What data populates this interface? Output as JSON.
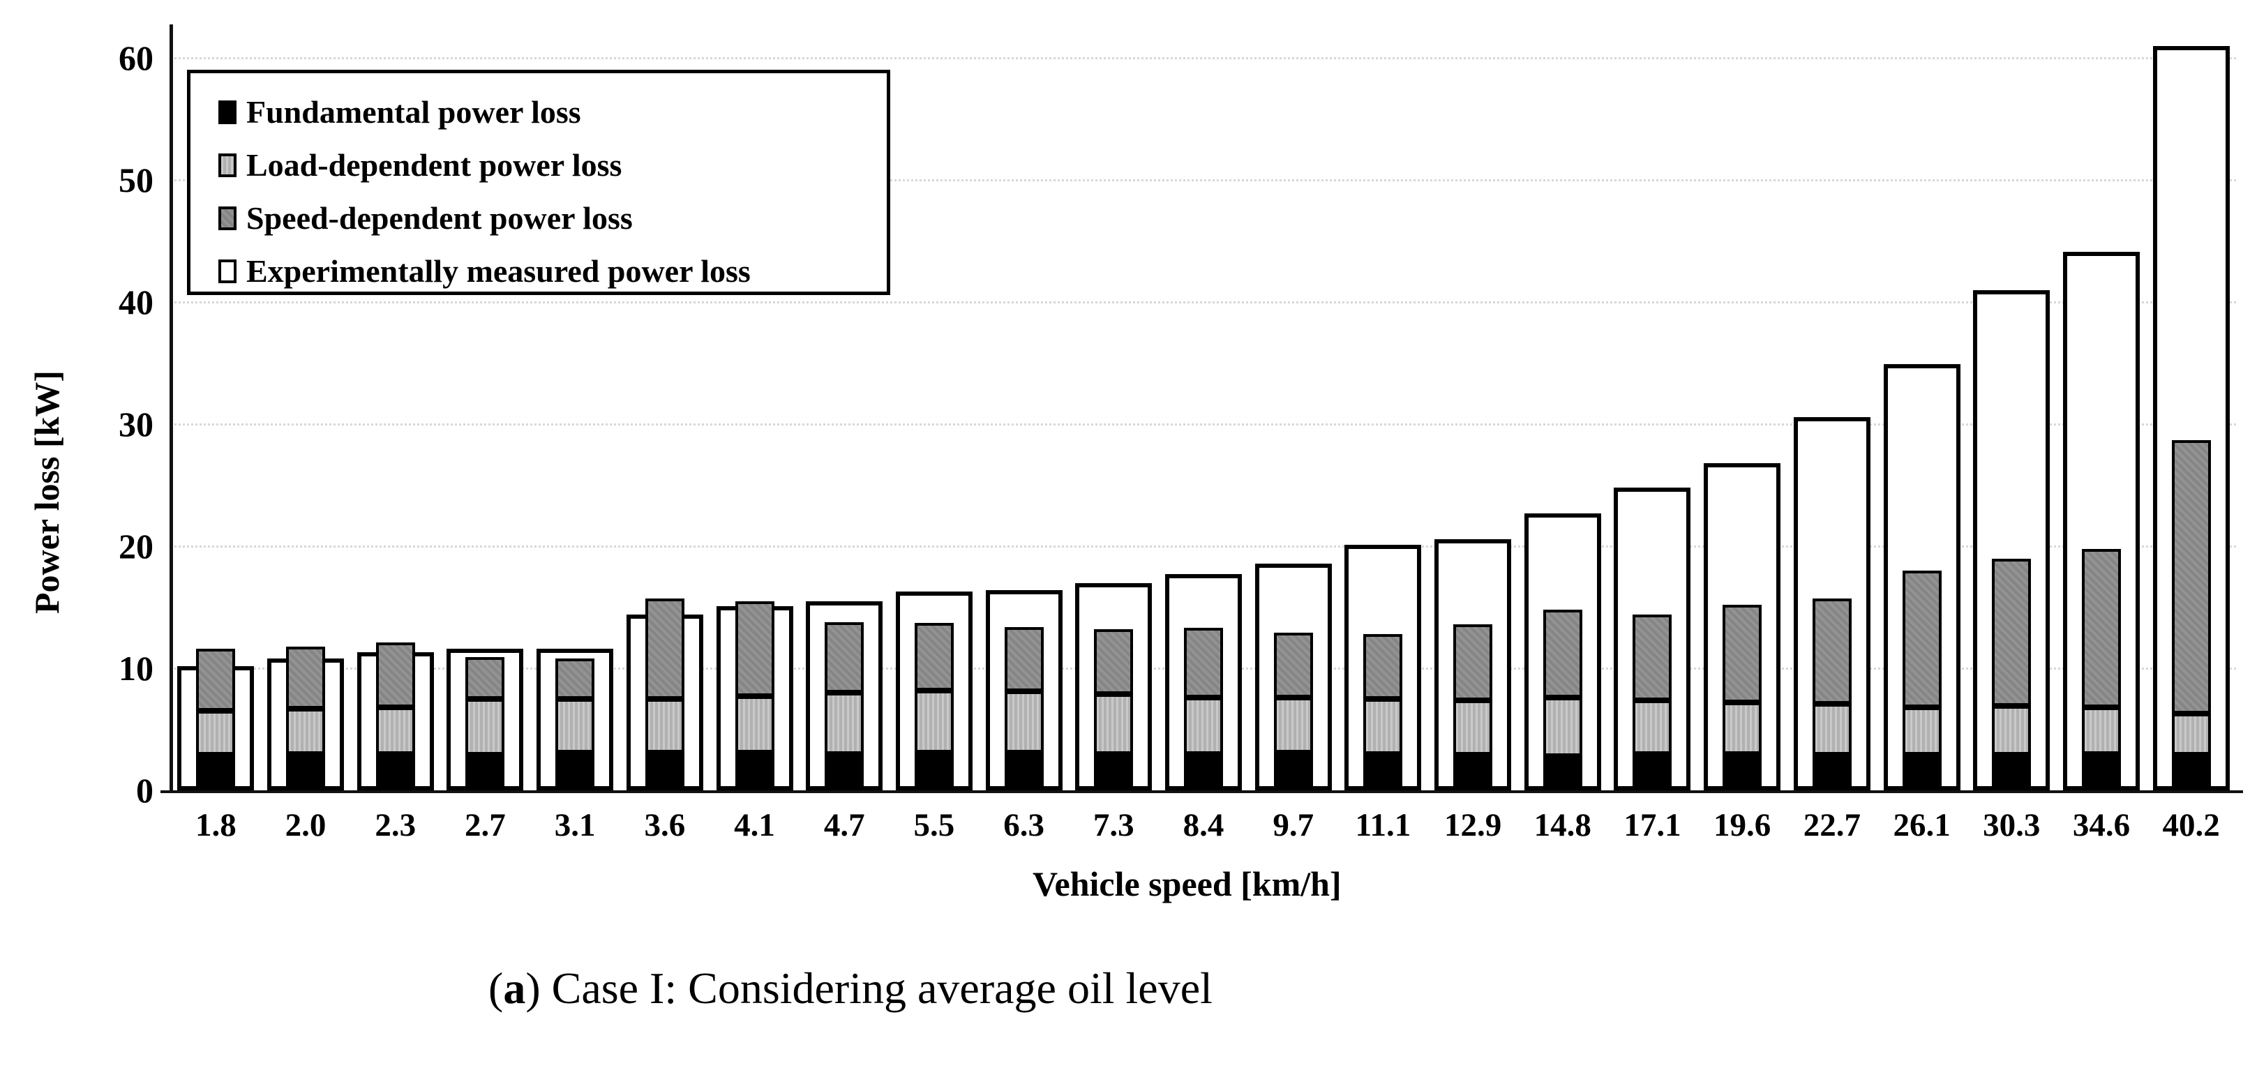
{
  "chart_data": {
    "type": "bar",
    "stacked": true,
    "xlabel": "Vehicle speed [km/h]",
    "ylabel": "Power loss [kW]",
    "ylim": [
      0,
      62
    ],
    "yticks": [
      0,
      10,
      20,
      30,
      40,
      50,
      60
    ],
    "grid": "horizontal-dotted",
    "legend_position": "upper-left",
    "categories": [
      "1.8",
      "2.0",
      "2.3",
      "2.7",
      "3.1",
      "3.6",
      "4.1",
      "4.7",
      "5.5",
      "6.3",
      "7.3",
      "8.4",
      "9.7",
      "11.1",
      "12.9",
      "14.8",
      "17.1",
      "19.6",
      "22.7",
      "26.1",
      "30.3",
      "34.6",
      "40.2"
    ],
    "series": [
      {
        "name": "Fundamental power loss",
        "color": "#000000",
        "style": "solid-black",
        "values": [
          2.9,
          3.0,
          3.0,
          2.9,
          3.1,
          3.1,
          3.1,
          3.0,
          3.1,
          3.1,
          3.0,
          3.0,
          3.1,
          3.0,
          2.9,
          2.8,
          3.0,
          3.0,
          2.9,
          2.9,
          2.9,
          3.0,
          2.9
        ]
      },
      {
        "name": "Load-dependent power loss",
        "color": "#b5b5b5",
        "style": "light-gray",
        "values": [
          3.6,
          3.7,
          3.8,
          4.6,
          4.4,
          4.4,
          4.6,
          5.0,
          5.1,
          5.0,
          4.9,
          4.6,
          4.5,
          4.5,
          4.5,
          4.8,
          4.4,
          4.2,
          4.2,
          3.9,
          4.0,
          3.8,
          3.4
        ]
      },
      {
        "name": "Speed-dependent power loss",
        "color": "#8a8a8a",
        "style": "dark-gray",
        "values": [
          5.1,
          5.1,
          5.3,
          3.4,
          3.3,
          8.2,
          7.8,
          5.8,
          5.5,
          5.3,
          5.3,
          5.7,
          5.3,
          5.3,
          6.2,
          7.2,
          7.0,
          8.0,
          8.6,
          11.2,
          12.1,
          13.0,
          22.4
        ]
      },
      {
        "name": "Experimentally measured power loss",
        "color": "#ffffff",
        "style": "white-outline",
        "values": [
          10.2,
          10.8,
          11.3,
          11.6,
          11.6,
          14.4,
          15.1,
          15.5,
          16.3,
          16.4,
          17.0,
          17.7,
          18.6,
          20.1,
          20.6,
          22.7,
          24.8,
          26.8,
          30.6,
          34.9,
          41.0,
          44.1,
          61.0
        ]
      }
    ]
  },
  "caption": {
    "paren_open": "(",
    "letter": "a",
    "paren_close": ") ",
    "text": "Case I: Considering average oil level"
  }
}
